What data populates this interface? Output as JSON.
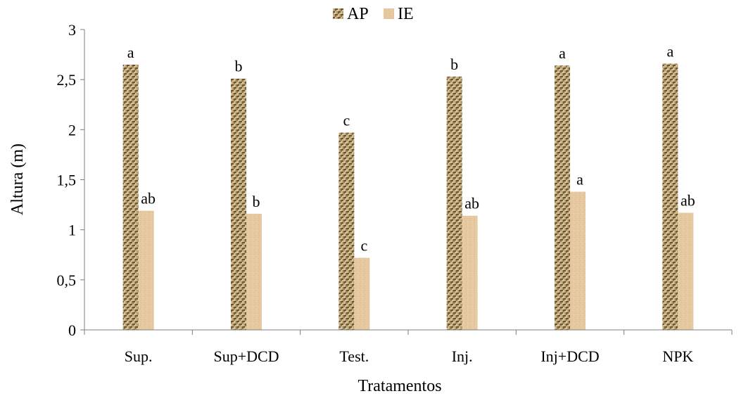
{
  "chart_data": {
    "type": "bar",
    "title": "",
    "xlabel": "Tratamentos",
    "ylabel": "Altura (m)",
    "ylim": [
      0,
      3
    ],
    "yticks": [
      "0",
      "0,5",
      "1",
      "1,5",
      "2",
      "2,5",
      "3"
    ],
    "grid": false,
    "legend_position": "top",
    "categories": [
      "Sup.",
      "Sup+DCD",
      "Test.",
      "Inj.",
      "Inj+DCD",
      "NPK"
    ],
    "series": [
      {
        "name": "AP",
        "color": "#a0885a",
        "pattern": "woven-texture",
        "values": [
          2.65,
          2.51,
          1.97,
          2.53,
          2.64,
          2.66
        ],
        "labels": [
          "a",
          "b",
          "c",
          "b",
          "a",
          "a"
        ]
      },
      {
        "name": "IE",
        "color": "#e6c9a0",
        "pattern": "sand-texture",
        "values": [
          1.19,
          1.16,
          0.72,
          1.14,
          1.38,
          1.17
        ],
        "labels": [
          "ab",
          "b",
          "c",
          "ab",
          "a",
          "ab"
        ]
      }
    ]
  }
}
